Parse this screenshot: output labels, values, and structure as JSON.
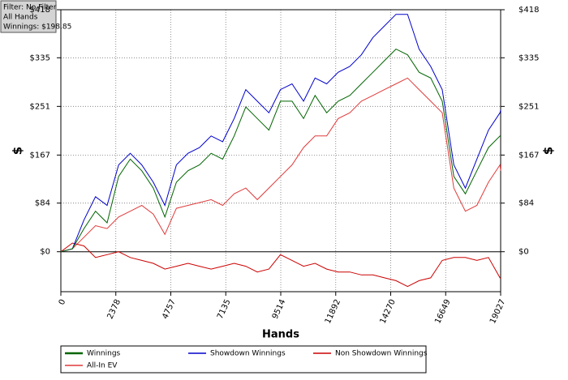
{
  "filter_box": {
    "filter": "Filter: No Filter",
    "hands": "All Hands",
    "winnings": "Winnings: $198.85"
  },
  "chart_data": {
    "type": "line",
    "xlabel": "Hands",
    "ylabel": "$",
    "y2label": "$",
    "xlim": [
      0,
      19027
    ],
    "ylim": [
      -69,
      418
    ],
    "xticks": [
      0,
      2378,
      4757,
      7135,
      9514,
      11892,
      14270,
      16649,
      19027
    ],
    "yticks": [
      {
        "value": 0,
        "label": "$0"
      },
      {
        "value": 84,
        "label": "$84"
      },
      {
        "value": 167,
        "label": "$167"
      },
      {
        "value": 251,
        "label": "$251"
      },
      {
        "value": 335,
        "label": "$335"
      },
      {
        "value": 418,
        "label": "$418"
      }
    ],
    "grid": true,
    "x": [
      0,
      500,
      1000,
      1500,
      2000,
      2500,
      3000,
      3500,
      4000,
      4500,
      5000,
      5500,
      6000,
      6500,
      7000,
      7500,
      8000,
      8500,
      9000,
      9500,
      10000,
      10500,
      11000,
      11500,
      12000,
      12500,
      13000,
      13500,
      14000,
      14500,
      15000,
      15500,
      16000,
      16500,
      17000,
      17500,
      18000,
      18500,
      19000,
      19027
    ],
    "series": [
      {
        "name": "Winnings",
        "color": "#006400",
        "width": 2,
        "values": [
          0,
          5,
          40,
          70,
          50,
          130,
          160,
          140,
          110,
          60,
          120,
          140,
          150,
          170,
          160,
          200,
          250,
          230,
          210,
          260,
          260,
          230,
          270,
          240,
          260,
          270,
          290,
          310,
          330,
          350,
          340,
          310,
          300,
          260,
          130,
          100,
          140,
          180,
          200,
          198.85
        ]
      },
      {
        "name": "Showdown Winnings",
        "color": "#0000cc",
        "width": 1,
        "values": [
          0,
          5,
          55,
          95,
          80,
          150,
          170,
          150,
          120,
          80,
          150,
          170,
          180,
          200,
          190,
          230,
          280,
          260,
          240,
          280,
          290,
          260,
          300,
          290,
          310,
          320,
          340,
          370,
          390,
          410,
          410,
          350,
          320,
          280,
          150,
          110,
          160,
          210,
          240,
          245
        ]
      },
      {
        "name": "Non Showdown Winnings",
        "color": "#cc0000",
        "width": 1,
        "values": [
          0,
          15,
          10,
          -10,
          -5,
          0,
          -10,
          -15,
          -20,
          -30,
          -25,
          -20,
          -25,
          -30,
          -25,
          -20,
          -25,
          -35,
          -30,
          -5,
          -15,
          -25,
          -20,
          -30,
          -35,
          -35,
          -40,
          -40,
          -45,
          -50,
          -60,
          -50,
          -45,
          -15,
          -10,
          -10,
          -15,
          -10,
          -45,
          -46
        ]
      },
      {
        "name": "All-In EV",
        "color": "#e03a3a",
        "width": 1,
        "values": [
          0,
          5,
          25,
          45,
          40,
          60,
          70,
          80,
          65,
          30,
          75,
          80,
          85,
          90,
          80,
          100,
          110,
          90,
          110,
          130,
          150,
          180,
          200,
          200,
          230,
          240,
          260,
          270,
          280,
          290,
          300,
          280,
          260,
          240,
          110,
          70,
          80,
          120,
          150,
          140
        ]
      }
    ]
  }
}
